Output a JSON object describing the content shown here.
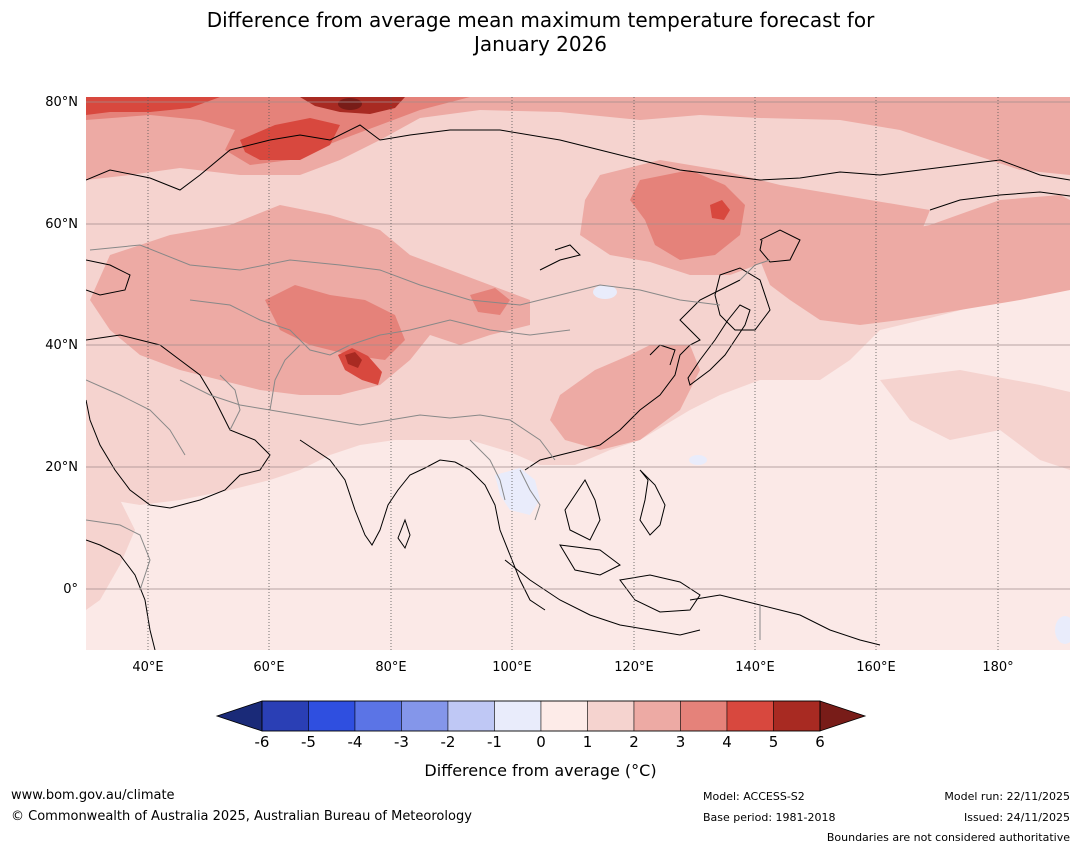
{
  "title": {
    "line1": "Difference from average mean maximum temperature forecast for",
    "line2": "January 2026"
  },
  "map": {
    "lat_labels": [
      "80°N",
      "60°N",
      "40°N",
      "20°N",
      "0°"
    ],
    "lon_labels": [
      "40°E",
      "60°E",
      "80°E",
      "100°E",
      "120°E",
      "140°E",
      "160°E",
      "180°"
    ],
    "ocean_color": "#fbe9e7",
    "land_base_color": "#f5d3cf",
    "coast_color": "#000000",
    "border_color": "#888888"
  },
  "colorbar": {
    "ticks": [
      "-6",
      "-5",
      "-4",
      "-3",
      "-2",
      "-1",
      "0",
      "1",
      "2",
      "3",
      "4",
      "5",
      "6"
    ],
    "colors": [
      "#1a2a78",
      "#2a3fb5",
      "#2f4fe0",
      "#5b74e6",
      "#8496ea",
      "#bfc8f5",
      "#e9ecfb",
      "#fdebe8",
      "#f5d3cf",
      "#edaaa4",
      "#e5827a",
      "#d8483e",
      "#a82a22",
      "#781c18"
    ],
    "label": "Difference from average (°C)"
  },
  "footer": {
    "website": "www.bom.gov.au/climate",
    "copyright": "© Commonwealth of Australia 2025, Australian Bureau of Meteorology",
    "model": "Model: ACCESS-S2",
    "base_period": "Base period: 1981-2018",
    "model_run": "Model run: 22/11/2025",
    "issued": "Issued: 24/11/2025",
    "disclaimer": "Boundaries are not considered authoritative"
  }
}
